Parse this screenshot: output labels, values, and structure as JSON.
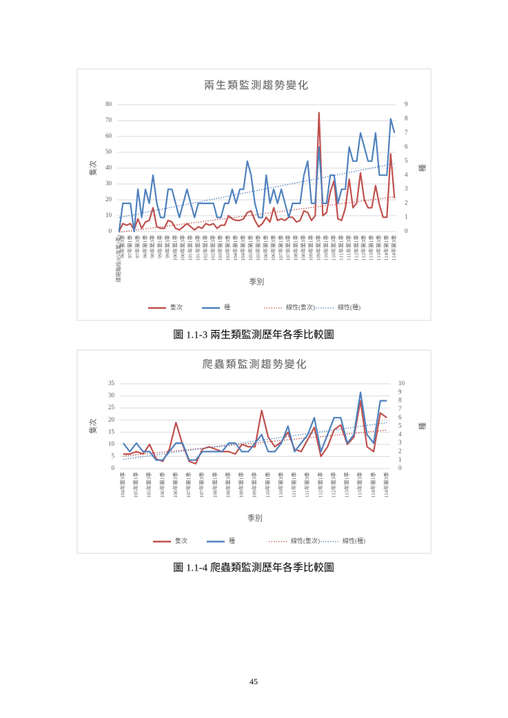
{
  "chart_data": [
    {
      "type": "line",
      "title": "兩生類監測趨勢變化",
      "xlabel": "季別",
      "ylabel": "隻次",
      "y2label": "種",
      "categories": [
        "環現階段(85年第1季)",
        "96年第3季",
        null,
        "97年第1季",
        null,
        "97年第3季",
        null,
        "98年第1季",
        null,
        "98年第3季",
        null,
        "99年第1季",
        null,
        "99年第3季",
        null,
        "100年第1季",
        null,
        "100年第3季",
        null,
        "101年第1季",
        null,
        "101年第3季",
        null,
        "102年第1季",
        null,
        "102年第3季",
        null,
        "103年第1季",
        null,
        "103年第3季",
        null,
        "104年第1季",
        null,
        "104年第3季",
        null,
        "105年第1季",
        null,
        "105年第3季",
        null,
        "106年第1季",
        null,
        "106年第3季",
        null,
        "107年第1季",
        null,
        "107年第3季",
        null,
        "108年第1季",
        null,
        "108年第3季",
        null,
        "109年第1季",
        null,
        "109年第3季",
        null,
        "110年第1季",
        null,
        "110年第3季",
        null,
        "111年第1季",
        null,
        "111年第3季",
        null,
        "112年第1季",
        null,
        "112年第3季",
        null,
        "113年第1季",
        null,
        "113年第3季",
        null,
        "114年第1季",
        null,
        "114年第3季"
      ],
      "series": [
        {
          "name": "隻次",
          "color": "#c0504d",
          "trendline": "線性(隻次)",
          "values": [
            0,
            5,
            4,
            5,
            1,
            8,
            2,
            6,
            7,
            15,
            3,
            2,
            2,
            7,
            6,
            2,
            1,
            3,
            5,
            3,
            1,
            3,
            2,
            5,
            4,
            5,
            2,
            4,
            4,
            10,
            8,
            7,
            7,
            8,
            12,
            13,
            7,
            3,
            5,
            9,
            6,
            15,
            7,
            8,
            7,
            9,
            9,
            6,
            7,
            13,
            12,
            7,
            10,
            75,
            10,
            12,
            25,
            32,
            8,
            7,
            15,
            33,
            15,
            18,
            37,
            20,
            15,
            15,
            29,
            17,
            9,
            9,
            49,
            21
          ]
        },
        {
          "name": "種",
          "color": "#4f81bd",
          "trendline": "線性(種)",
          "axis": "y2",
          "values": [
            0,
            2,
            2,
            2,
            0,
            3,
            1,
            3,
            2,
            4,
            2,
            1,
            1,
            3,
            3,
            2,
            1,
            2,
            3,
            2,
            1,
            2,
            2,
            2,
            2,
            2,
            1,
            1,
            2,
            2,
            3,
            2,
            3,
            3,
            5,
            4,
            2,
            1,
            1,
            4,
            2,
            3,
            2,
            3,
            2,
            1,
            2,
            2,
            2,
            4,
            5,
            2,
            2,
            6,
            2,
            2,
            4,
            4,
            2,
            3,
            3,
            6,
            5,
            5,
            7,
            6,
            5,
            5,
            7,
            4,
            4,
            4,
            8,
            7
          ]
        }
      ],
      "ylim": [
        0,
        80
      ],
      "yticks": [
        0,
        10,
        20,
        30,
        40,
        50,
        60,
        70,
        80
      ],
      "y2lim": [
        0,
        9
      ],
      "y2ticks": [
        0,
        1,
        2,
        3,
        4,
        5,
        6,
        7,
        8,
        9
      ],
      "grid": true
    },
    {
      "type": "line",
      "title": "爬蟲類監測趨勢變化",
      "xlabel": "季別",
      "ylabel": "隻次",
      "y2label": "種",
      "categories": [
        "104年第3季",
        null,
        "105年第1季",
        null,
        "105年第3季",
        null,
        "106年第1季",
        null,
        "106年第3季",
        null,
        "107年第1季",
        null,
        "107年第3季",
        null,
        "108年第1季",
        null,
        "108年第3季",
        null,
        "109年第1季",
        null,
        "109年第3季",
        null,
        "110年第1季",
        null,
        "110年第3季",
        null,
        "111年第1季",
        null,
        "111年第3季",
        null,
        "112年第1季",
        null,
        "112年第3季",
        null,
        "113年第1季",
        null,
        "113年第3季",
        null,
        "114年第1季",
        null,
        "114年第3季"
      ],
      "series": [
        {
          "name": "隻次",
          "color": "#c0504d",
          "trendline": "線性(隻次)",
          "values": [
            6,
            6,
            7,
            6,
            10,
            4,
            3,
            8,
            19,
            10,
            3,
            2,
            8,
            9,
            8,
            7,
            7,
            6,
            10,
            9,
            9,
            24,
            13,
            9,
            11,
            15,
            8,
            7,
            12,
            17,
            5,
            9,
            16,
            18,
            10,
            13,
            28,
            9,
            7,
            23,
            21
          ]
        },
        {
          "name": "種",
          "color": "#4f81bd",
          "trendline": "線性(種)",
          "axis": "y2",
          "values": [
            3,
            2,
            3,
            2,
            2,
            1,
            1,
            2,
            3,
            3,
            1,
            1,
            2,
            2,
            2,
            2,
            3,
            3,
            2,
            2,
            3,
            4,
            2,
            2,
            3,
            5,
            2,
            3,
            4,
            6,
            2,
            4,
            6,
            6,
            3,
            4,
            9,
            4,
            3,
            8,
            8
          ]
        }
      ],
      "ylim": [
        0,
        35
      ],
      "yticks": [
        0,
        5,
        10,
        15,
        20,
        25,
        30,
        35
      ],
      "y2lim": [
        0,
        10
      ],
      "y2ticks": [
        0,
        1,
        2,
        3,
        4,
        5,
        6,
        7,
        8,
        9,
        10
      ],
      "grid": true
    }
  ],
  "captions": [
    "圖 1.1-3 兩生類監測歷年各季比較圖",
    "圖 1.1-4 爬蟲類監測歷年各季比較圖"
  ],
  "page_number": "45"
}
